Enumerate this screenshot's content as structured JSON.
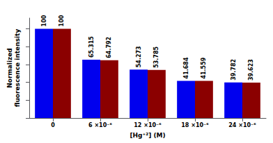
{
  "chart_data": {
    "type": "bar",
    "xlabel": "[Hg⁺²] (M)",
    "ylabel": "Normalized\nfluorescence intensity",
    "categories": [
      "0",
      "6 ×10⁻⁶",
      "12 ×10⁻⁶",
      "18 ×10⁻⁶",
      "24 ×10⁻⁶"
    ],
    "series": [
      {
        "color": "#0000EE",
        "values": [
          100,
          65.315,
          54.273,
          41.684,
          39.782
        ]
      },
      {
        "color": "#8B0000",
        "values": [
          100,
          64.792,
          53.785,
          41.559,
          39.623
        ]
      }
    ],
    "ylim": [
      0,
      112
    ],
    "yticks": [
      0,
      20,
      40,
      60,
      80,
      100
    ],
    "data_labels": true,
    "tick_labels": "x",
    "grid": false
  }
}
